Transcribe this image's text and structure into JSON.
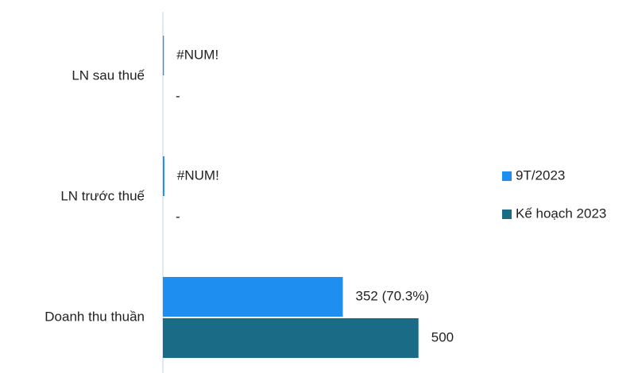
{
  "chart_data": {
    "type": "hbar",
    "categories": [
      "LN sau thuế",
      "LN trước thuế",
      "Doanh thu thuần"
    ],
    "series": [
      {
        "name": "9T/2023",
        "color": "#1e8ff0",
        "values": [
          2,
          3,
          352
        ],
        "value_labels": [
          "#NUM!",
          "#NUM!",
          "352 (70.3%)"
        ]
      },
      {
        "name": "Kế hoạch 2023",
        "color": "#1a6b85",
        "values": [
          0,
          0,
          500
        ],
        "value_labels": [
          "-",
          "-",
          "500"
        ]
      }
    ],
    "xlim": [
      0,
      920
    ],
    "legend": "right"
  }
}
